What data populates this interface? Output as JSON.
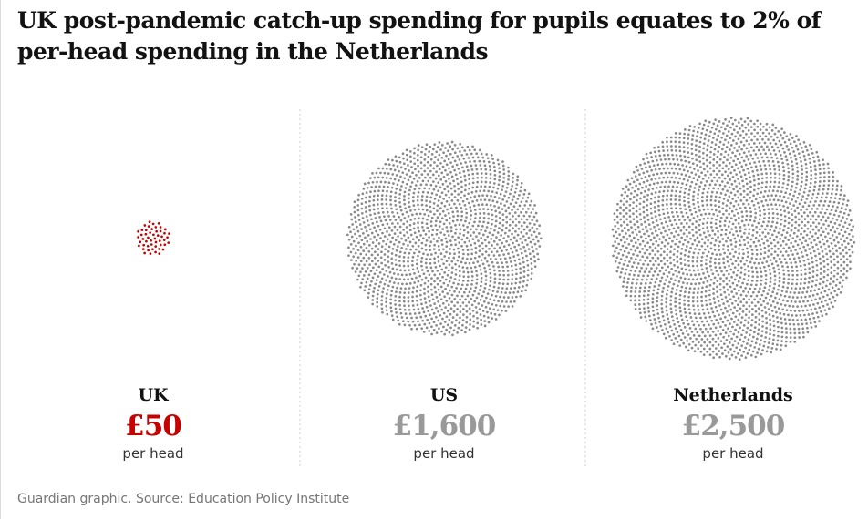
{
  "title": "UK post-pandemic catch-up spending for pupils equates to 2% of per-head spending in the Netherlands",
  "footer": "Guardian graphic. Source: Education Policy Institute",
  "chart_data": {
    "type": "dot-cluster",
    "unit_per_dot": "£1",
    "categories": [
      "UK",
      "US",
      "Netherlands"
    ],
    "values": [
      50,
      1600,
      2500
    ],
    "value_labels": [
      "£50",
      "£1,600",
      "£2,500"
    ],
    "sublabel": "per head",
    "colors": [
      "#c70000",
      "#8a8a8a",
      "#8a8a8a"
    ],
    "value_text_colors": [
      "#c70000",
      "#999999",
      "#999999"
    ]
  }
}
